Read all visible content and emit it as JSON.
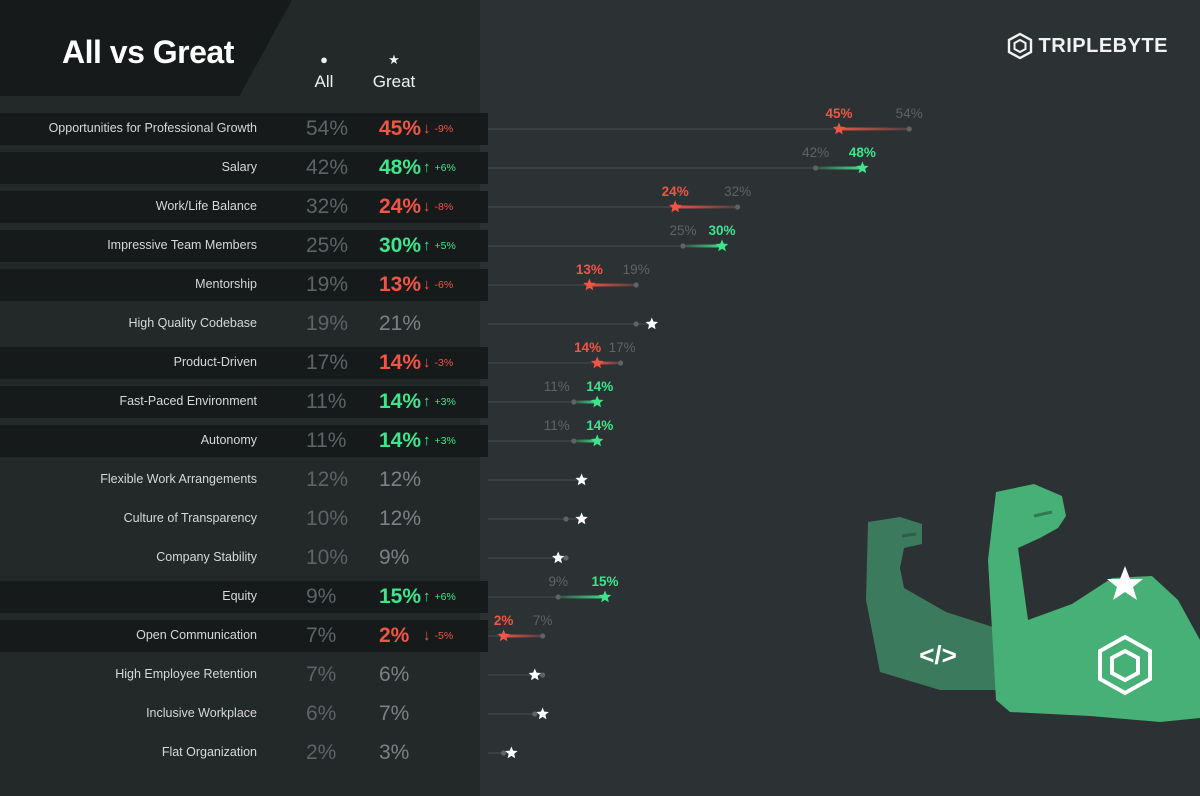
{
  "title": "All vs Great",
  "columns": {
    "all_label": "All",
    "great_label": "Great"
  },
  "brand": {
    "name": "TRIPLEBYTE"
  },
  "colors": {
    "up": "#3ee58c",
    "down": "#f05545",
    "neutral": "#ffffff",
    "all": "#5e6466",
    "arm_back": "#3c7a5e",
    "arm_front": "#47b077"
  },
  "chart_data": {
    "type": "dot-comparison",
    "title": "All vs Great",
    "series": [
      {
        "name": "All",
        "marker": "dot"
      },
      {
        "name": "Great",
        "marker": "star"
      }
    ],
    "categories": [
      "Opportunities for Professional Growth",
      "Salary",
      "Work/Life Balance",
      "Impressive Team Members",
      "Mentorship",
      "High Quality Codebase",
      "Product-Driven",
      "Fast-Paced Environment",
      "Autonomy",
      "Flexible Work Arrangements",
      "Culture of Transparency",
      "Company Stability",
      "Equity",
      "Open Communication",
      "High Employee Retention",
      "Inclusive Workplace",
      "Flat Organization"
    ],
    "rows": [
      {
        "label": "Opportunities for Professional Growth",
        "all": 54,
        "great": 45,
        "all_text": "54%",
        "great_text": "45%",
        "delta": "-9%",
        "trend": "down"
      },
      {
        "label": "Salary",
        "all": 42,
        "great": 48,
        "all_text": "42%",
        "great_text": "48%",
        "delta": "+6%",
        "trend": "up"
      },
      {
        "label": "Work/Life Balance",
        "all": 32,
        "great": 24,
        "all_text": "32%",
        "great_text": "24%",
        "delta": "-8%",
        "trend": "down"
      },
      {
        "label": "Impressive Team Members",
        "all": 25,
        "great": 30,
        "all_text": "25%",
        "great_text": "30%",
        "delta": "+5%",
        "trend": "up"
      },
      {
        "label": "Mentorship",
        "all": 19,
        "great": 13,
        "all_text": "19%",
        "great_text": "13%",
        "delta": "-6%",
        "trend": "down"
      },
      {
        "label": "High Quality Codebase",
        "all": 19,
        "great": 21,
        "all_text": "19%",
        "great_text": "21%",
        "delta": "",
        "trend": "neutral"
      },
      {
        "label": "Product-Driven",
        "all": 17,
        "great": 14,
        "all_text": "17%",
        "great_text": "14%",
        "delta": "-3%",
        "trend": "down"
      },
      {
        "label": "Fast-Paced Environment",
        "all": 11,
        "great": 14,
        "all_text": "11%",
        "great_text": "14%",
        "delta": "+3%",
        "trend": "up"
      },
      {
        "label": "Autonomy",
        "all": 11,
        "great": 14,
        "all_text": "11%",
        "great_text": "14%",
        "delta": "+3%",
        "trend": "up"
      },
      {
        "label": "Flexible Work Arrangements",
        "all": 12,
        "great": 12,
        "all_text": "12%",
        "great_text": "12%",
        "delta": "",
        "trend": "neutral"
      },
      {
        "label": "Culture of Transparency",
        "all": 10,
        "great": 12,
        "all_text": "10%",
        "great_text": "12%",
        "delta": "",
        "trend": "neutral"
      },
      {
        "label": "Company Stability",
        "all": 10,
        "great": 9,
        "all_text": "10%",
        "great_text": "9%",
        "delta": "",
        "trend": "neutral"
      },
      {
        "label": "Equity",
        "all": 9,
        "great": 15,
        "all_text": "9%",
        "great_text": "15%",
        "delta": "+6%",
        "trend": "up"
      },
      {
        "label": "Open Communication",
        "all": 7,
        "great": 2,
        "all_text": "7%",
        "great_text": "2%",
        "delta": "-5%",
        "trend": "down"
      },
      {
        "label": "High Employee Retention",
        "all": 7,
        "great": 6,
        "all_text": "7%",
        "great_text": "6%",
        "delta": "",
        "trend": "neutral"
      },
      {
        "label": "Inclusive Workplace",
        "all": 6,
        "great": 7,
        "all_text": "6%",
        "great_text": "7%",
        "delta": "",
        "trend": "neutral"
      },
      {
        "label": "Flat Organization",
        "all": 2,
        "great": 3,
        "all_text": "2%",
        "great_text": "3%",
        "delta": "",
        "trend": "neutral"
      }
    ],
    "xlim": [
      0,
      54
    ],
    "xlabel": "",
    "ylabel": ""
  }
}
